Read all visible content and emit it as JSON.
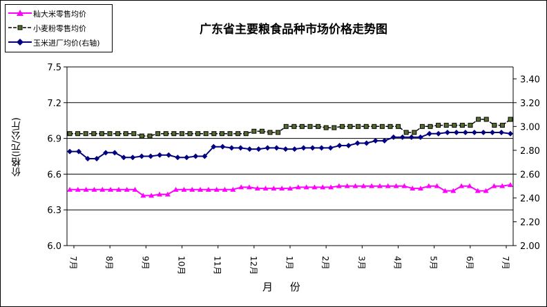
{
  "legend": {
    "items": [
      {
        "label": "籼大米零售均价",
        "color": "#ff00ff",
        "marker": "triangle"
      },
      {
        "label": "小麦粉零售均价",
        "color": "#000000",
        "marker": "square"
      },
      {
        "label": "玉米进厂均价(右轴)",
        "color": "#000080",
        "marker": "diamond"
      }
    ]
  },
  "chart_data": {
    "type": "line",
    "title": "广东省主要粮食品种市场价格走势图",
    "xlabel": "月  份",
    "ylabel": "价格(元/公斤)",
    "ylim": [
      6.0,
      7.5
    ],
    "y_ticks": [
      "6.0",
      "6.3",
      "6.6",
      "6.9",
      "7.2",
      "7.5"
    ],
    "y2lim": [
      2.0,
      3.5
    ],
    "y2_ticks": [
      "2.00",
      "2.20",
      "2.40",
      "2.60",
      "2.80",
      "3.00",
      "3.20",
      "3.40"
    ],
    "grid": true,
    "legend_position": "top-left",
    "x_tick_labels": [
      "7月",
      "8月",
      "9月",
      "10月",
      "11月",
      "12月",
      "1月",
      "2月",
      "3月",
      "4月",
      "5月",
      "6月",
      "7月"
    ],
    "series": [
      {
        "name": "籼大米零售均价",
        "axis": "left",
        "color": "#ff00ff",
        "marker": "triangle",
        "values": [
          6.47,
          6.47,
          6.47,
          6.47,
          6.47,
          6.47,
          6.47,
          6.47,
          6.47,
          6.42,
          6.42,
          6.43,
          6.43,
          6.47,
          6.47,
          6.47,
          6.47,
          6.47,
          6.47,
          6.47,
          6.47,
          6.49,
          6.49,
          6.48,
          6.48,
          6.48,
          6.48,
          6.48,
          6.49,
          6.49,
          6.49,
          6.49,
          6.49,
          6.5,
          6.5,
          6.5,
          6.5,
          6.5,
          6.5,
          6.5,
          6.5,
          6.5,
          6.48,
          6.48,
          6.5,
          6.5,
          6.46,
          6.46,
          6.5,
          6.5,
          6.46,
          6.46,
          6.5,
          6.5,
          6.51
        ]
      },
      {
        "name": "小麦粉零售均价",
        "axis": "left",
        "color": "#000000",
        "marker": "square",
        "values": [
          6.94,
          6.94,
          6.94,
          6.94,
          6.94,
          6.94,
          6.94,
          6.94,
          6.94,
          6.92,
          6.92,
          6.94,
          6.94,
          6.94,
          6.94,
          6.94,
          6.94,
          6.94,
          6.94,
          6.94,
          6.94,
          6.94,
          6.94,
          6.96,
          6.96,
          6.95,
          6.95,
          7.0,
          7.0,
          7.0,
          7.0,
          7.0,
          6.99,
          6.99,
          7.0,
          7.0,
          7.0,
          7.0,
          7.0,
          7.0,
          7.0,
          7.0,
          6.95,
          6.95,
          7.0,
          7.0,
          7.01,
          7.01,
          7.01,
          7.01,
          7.01,
          7.06,
          7.06,
          7.01,
          7.01,
          7.06
        ]
      },
      {
        "name": "玉米进厂均价(右轴)",
        "axis": "right",
        "color": "#000080",
        "marker": "diamond",
        "values": [
          2.79,
          2.79,
          2.73,
          2.73,
          2.78,
          2.78,
          2.74,
          2.74,
          2.75,
          2.75,
          2.76,
          2.76,
          2.74,
          2.74,
          2.75,
          2.75,
          2.83,
          2.83,
          2.82,
          2.82,
          2.81,
          2.81,
          2.82,
          2.82,
          2.81,
          2.81,
          2.82,
          2.82,
          2.82,
          2.82,
          2.84,
          2.84,
          2.86,
          2.86,
          2.88,
          2.88,
          2.91,
          2.91,
          2.91,
          2.91,
          2.94,
          2.94,
          2.95,
          2.95,
          2.95,
          2.95,
          2.95,
          2.95,
          2.95,
          2.94
        ]
      }
    ]
  }
}
